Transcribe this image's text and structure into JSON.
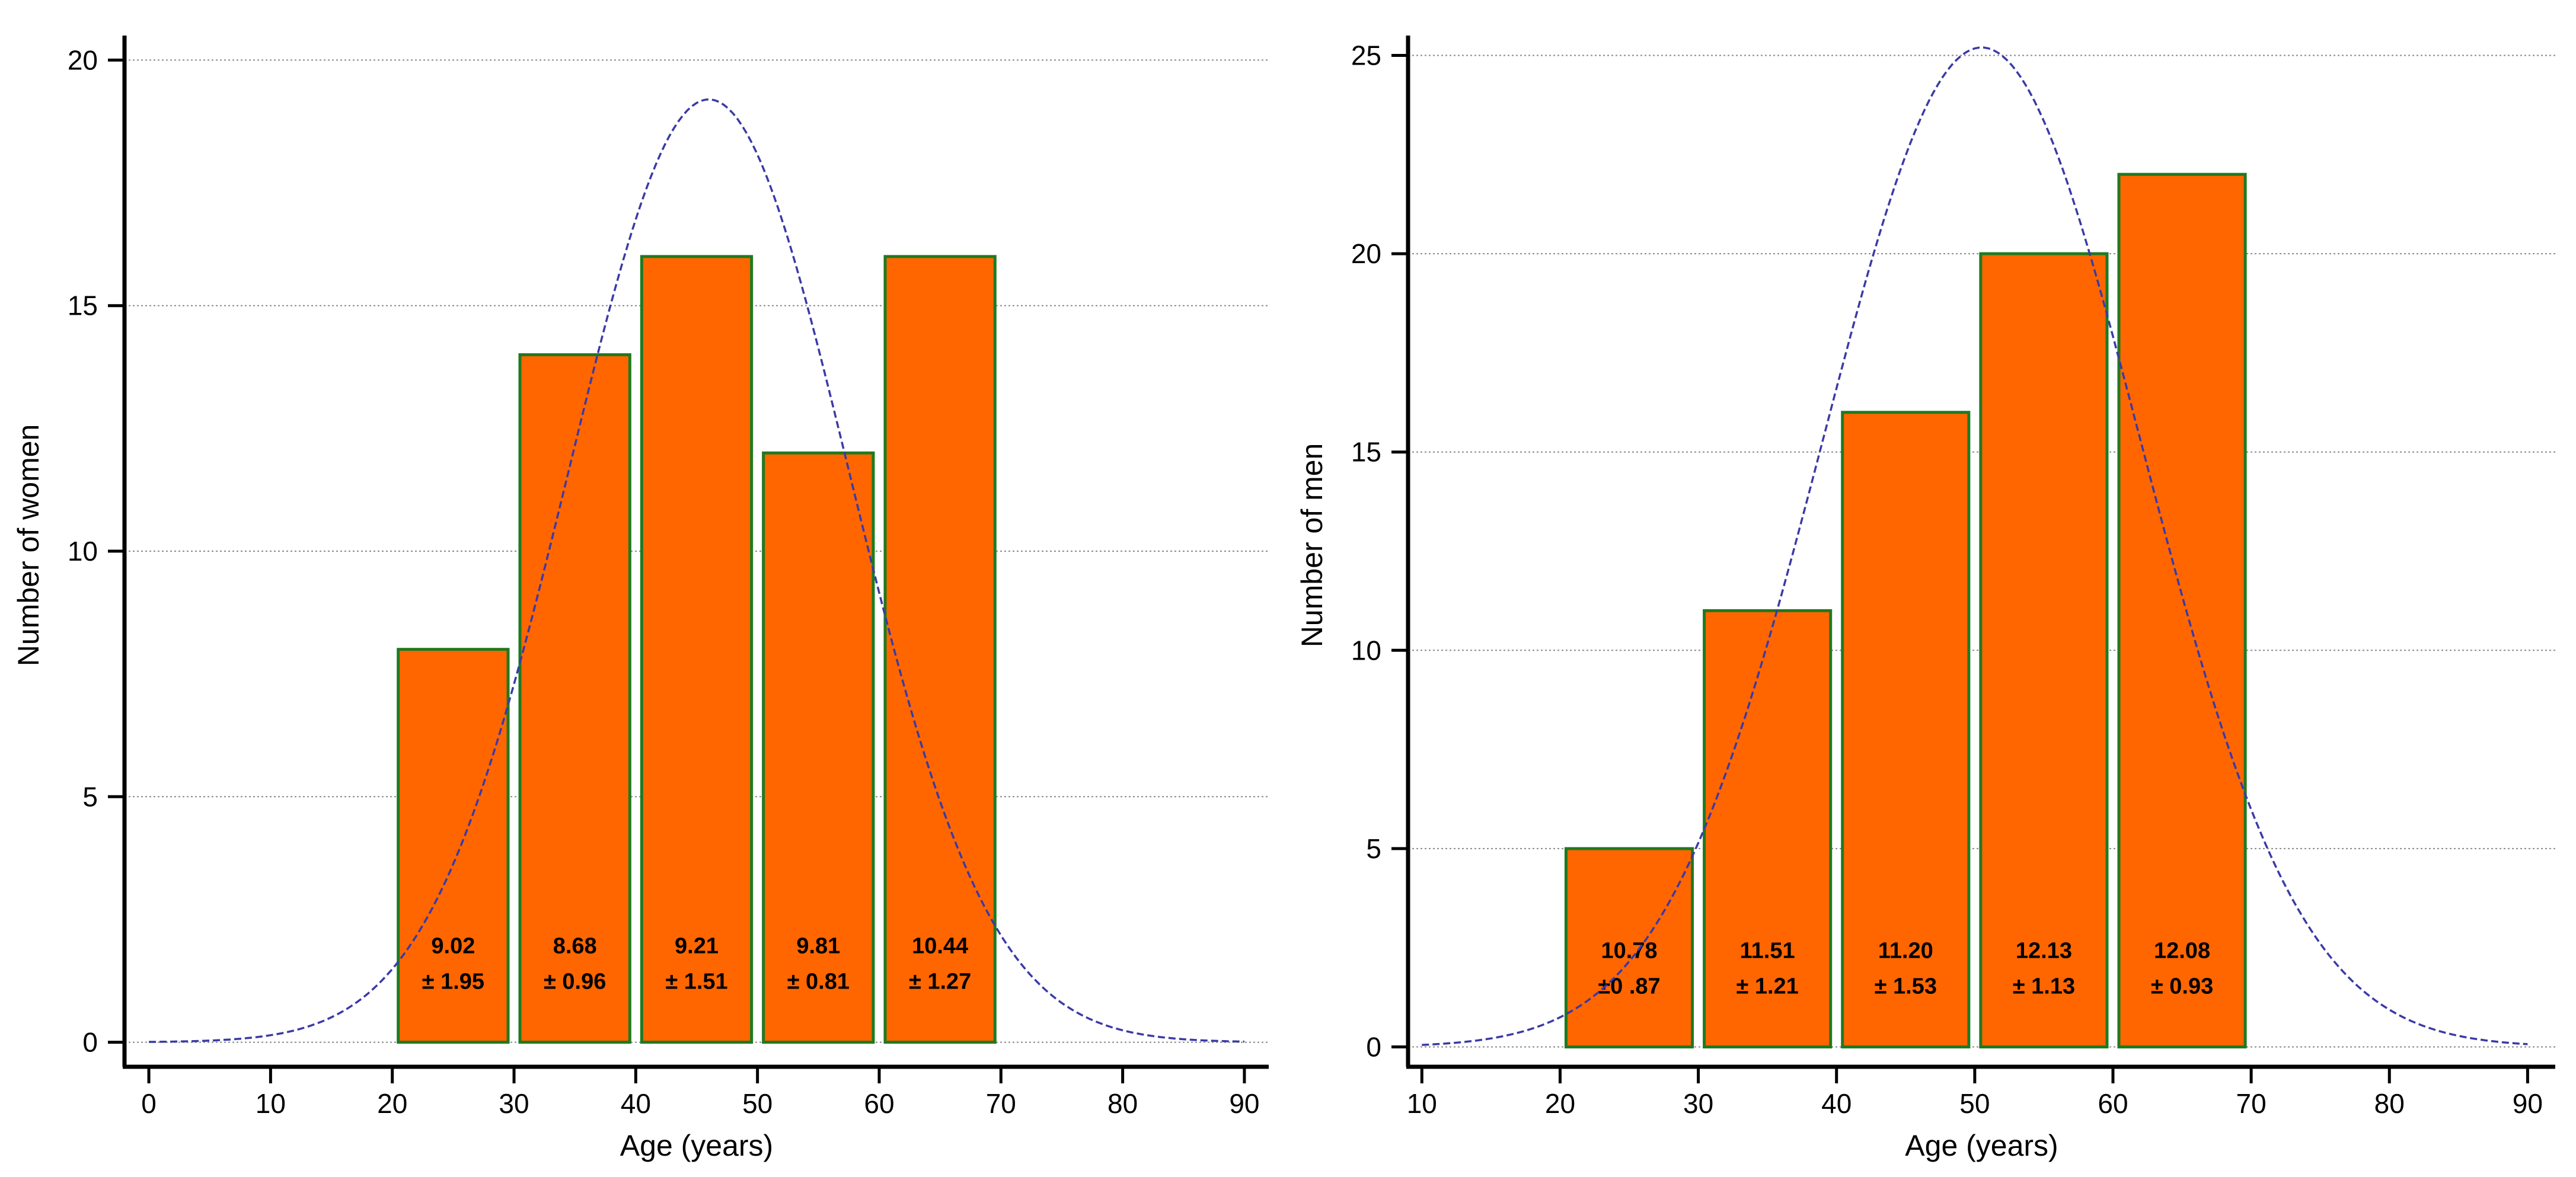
{
  "colors": {
    "bar_fill": "#FF6600",
    "bar_edge": "#1F7A1F",
    "curve": "#3A3AA8",
    "grid": "#8A8A8A",
    "axis": "#000000"
  },
  "chart_data": [
    {
      "type": "bar",
      "subtype": "histogram with normal curve",
      "title": "",
      "xlabel": "Age (years)",
      "ylabel": "Number of women",
      "xlim": [
        -2,
        92
      ],
      "ylim": [
        -0.5,
        20.5
      ],
      "x_ticks": [
        0,
        10,
        20,
        30,
        40,
        50,
        60,
        70,
        80,
        90
      ],
      "y_ticks": [
        0,
        5,
        10,
        15,
        20
      ],
      "grid": "horizontal dotted",
      "legend": "none",
      "bins": [
        {
          "x0": 20,
          "x1": 30,
          "value": 8,
          "label_line1": "9.02",
          "label_line2": "± 1.95"
        },
        {
          "x0": 30,
          "x1": 40,
          "value": 14,
          "label_line1": "8.68",
          "label_line2": "± 0.96"
        },
        {
          "x0": 40,
          "x1": 50,
          "value": 16,
          "label_line1": "9.21",
          "label_line2": "± 1.51"
        },
        {
          "x0": 50,
          "x1": 60,
          "value": 12,
          "label_line1": "9.81",
          "label_line2": "± 0.81"
        },
        {
          "x0": 60,
          "x1": 70,
          "value": 16,
          "label_line1": "10.44",
          "label_line2": "± 1.27"
        }
      ],
      "normal_curve": {
        "mean": 46,
        "sd": 11.5,
        "peak": 19.2,
        "x_range": [
          0,
          90
        ]
      }
    },
    {
      "type": "bar",
      "subtype": "histogram with normal curve",
      "title": "",
      "xlabel": "Age (years)",
      "ylabel": "Number of men",
      "xlim": [
        9,
        92
      ],
      "ylim": [
        -0.5,
        25.5
      ],
      "x_ticks": [
        10,
        20,
        30,
        40,
        50,
        60,
        70,
        80,
        90
      ],
      "y_ticks": [
        0,
        5,
        10,
        15,
        20,
        25
      ],
      "grid": "horizontal dotted",
      "legend": "none",
      "bins": [
        {
          "x0": 20,
          "x1": 30,
          "value": 5,
          "label_line1": "10.78",
          "label_line2": "±0 .87"
        },
        {
          "x0": 30,
          "x1": 40,
          "value": 11,
          "label_line1": "11.51",
          "label_line2": "± 1.21"
        },
        {
          "x0": 40,
          "x1": 50,
          "value": 16,
          "label_line1": "11.20",
          "label_line2": "± 1.53"
        },
        {
          "x0": 50,
          "x1": 60,
          "value": 20,
          "label_line1": "12.13",
          "label_line2": "± 1.13"
        },
        {
          "x0": 60,
          "x1": 70,
          "value": 22,
          "label_line1": "12.08",
          "label_line2": "± 0.93"
        }
      ],
      "normal_curve": {
        "mean": 50.5,
        "sd": 11.5,
        "peak": 25.2,
        "x_range": [
          10,
          90
        ]
      }
    }
  ]
}
